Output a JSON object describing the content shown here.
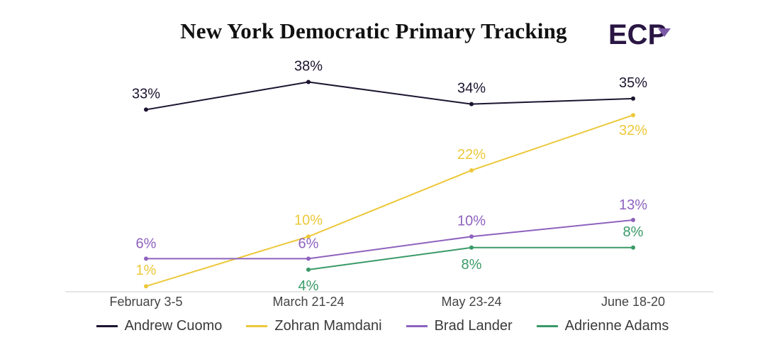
{
  "logo": {
    "text": "ECP",
    "icon": "ecp-logo-icon",
    "color": "#2a1643",
    "accent": "#7b5aa6"
  },
  "chart_data": {
    "type": "line",
    "title": "New York Democratic Primary Tracking",
    "xlabel": "",
    "ylabel": "",
    "categories": [
      "February 3-5",
      "March 21-24",
      "May 23-24",
      "June 18-20"
    ],
    "ylim": [
      0,
      40
    ],
    "grid": false,
    "legend": "bottom",
    "series": [
      {
        "name": "Andrew Cuomo",
        "color": "#1c1430",
        "values": [
          33,
          38,
          34,
          35
        ],
        "labels": [
          "33%",
          "38%",
          "34%",
          "35%"
        ]
      },
      {
        "name": "Zohran Mamdani",
        "color": "#ecc83a",
        "values": [
          1,
          10,
          22,
          32
        ],
        "labels": [
          "1%",
          "10%",
          "22%",
          "32%"
        ]
      },
      {
        "name": "Brad Lander",
        "color": "#8e62be",
        "values": [
          6,
          6,
          10,
          13
        ],
        "labels": [
          "6%",
          "6%",
          "10%",
          "13%"
        ]
      },
      {
        "name": "Adrienne Adams",
        "color": "#3a9a68",
        "values": [
          null,
          4,
          8,
          8
        ],
        "labels": [
          null,
          "4%",
          "8%",
          "8%"
        ]
      }
    ]
  }
}
